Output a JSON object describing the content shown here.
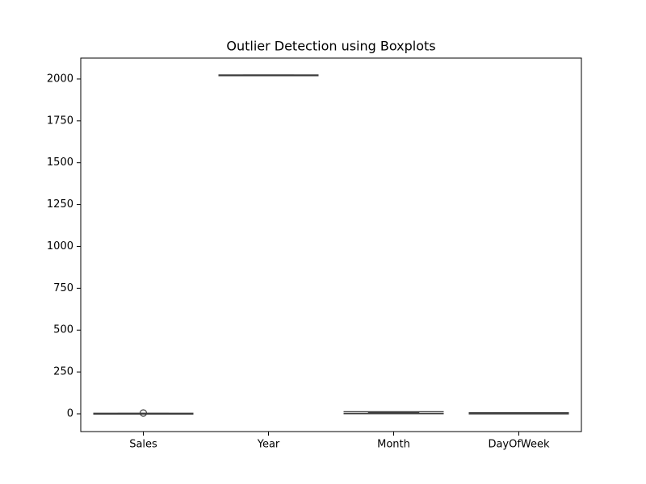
{
  "chart_data": {
    "type": "box",
    "title": "Outlier Detection using Boxplots",
    "categories": [
      "Sales",
      "Year",
      "Month",
      "DayOfWeek"
    ],
    "boxes": [
      {
        "whislo": -1,
        "q1": 0,
        "med": 1,
        "q3": 2,
        "whishi": 3,
        "fliers": [
          5
        ]
      },
      {
        "whislo": 2020,
        "q1": 2021,
        "med": 2022,
        "q3": 2023,
        "whishi": 2024
      },
      {
        "whislo": 1,
        "q1": 4,
        "med": 7,
        "q3": 10,
        "whishi": 12
      },
      {
        "whislo": 0,
        "q1": 1.5,
        "med": 3,
        "q3": 4.5,
        "whishi": 6
      }
    ],
    "color": "#3d3d3d",
    "ylim": [
      -106,
      2125
    ],
    "yticks": [
      0,
      250,
      500,
      750,
      1000,
      1250,
      1500,
      1750,
      2000
    ]
  }
}
